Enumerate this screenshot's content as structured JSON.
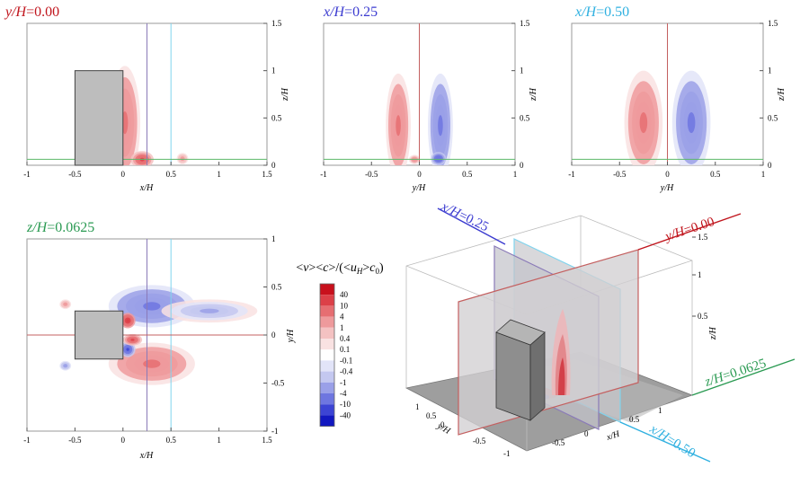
{
  "chart_data": [
    {
      "type": "heatmap",
      "panel": "top-left",
      "title": {
        "var": "y/H",
        "eq": "=0.00",
        "color": "#c0141c"
      },
      "xlabel": "x/H",
      "ylabel": "z/H",
      "xlim": [
        -1,
        1.5
      ],
      "ylim": [
        0,
        1.5
      ],
      "xticks": [
        "-1",
        "-0.5",
        "0",
        "0.5",
        "1",
        "1.5"
      ],
      "yticks": [
        "0",
        "0.5",
        "1",
        "1.5"
      ],
      "obstacle": {
        "x": [
          -0.5,
          0
        ],
        "z": [
          0,
          1
        ]
      },
      "lines": [
        {
          "orient": "vertical",
          "at": 0.25,
          "color": "#8a7ab8"
        },
        {
          "orient": "vertical",
          "at": 0.5,
          "color": "#7fd4ee"
        },
        {
          "orient": "horizontal",
          "at": 0.0625,
          "color": "#5bb86a"
        }
      ],
      "blobs": [
        {
          "x": 0.02,
          "y": 0.45,
          "rx": 0.16,
          "ry": 0.6,
          "v": 1.3
        },
        {
          "x": 0.2,
          "y": 0.06,
          "rx": 0.12,
          "ry": 0.09,
          "v": 2.6
        },
        {
          "x": 0.62,
          "y": 0.07,
          "rx": 0.06,
          "ry": 0.06,
          "v": 0.45
        }
      ]
    },
    {
      "type": "heatmap",
      "panel": "top-middle",
      "title": {
        "var": "x/H",
        "eq": "=0.25",
        "color": "#3b3bd0"
      },
      "xlabel": "y/H",
      "ylabel": "z/H",
      "xlim": [
        -1,
        1
      ],
      "ylim": [
        0,
        1.5
      ],
      "xticks": [
        "-1",
        "-0.5",
        "0",
        "0.5",
        "1"
      ],
      "yticks": [
        "0",
        "0.5",
        "1",
        "1.5"
      ],
      "lines": [
        {
          "orient": "vertical",
          "at": 0.0,
          "color": "#c46060"
        },
        {
          "orient": "horizontal",
          "at": 0.0625,
          "color": "#5bb86a"
        }
      ],
      "blobs": [
        {
          "x": -0.22,
          "y": 0.42,
          "rx": 0.13,
          "ry": 0.55,
          "v": 1.1
        },
        {
          "x": 0.22,
          "y": 0.42,
          "rx": 0.13,
          "ry": 0.55,
          "v": -1.1
        },
        {
          "x": 0.2,
          "y": 0.07,
          "rx": 0.08,
          "ry": 0.07,
          "v": -2.2
        },
        {
          "x": -0.05,
          "y": 0.06,
          "rx": 0.06,
          "ry": 0.05,
          "v": 0.8
        }
      ]
    },
    {
      "type": "heatmap",
      "panel": "top-right",
      "title": {
        "var": "x/H",
        "eq": "=0.50",
        "color": "#2fb0e0"
      },
      "xlabel": "y/H",
      "ylabel": "z/H",
      "xlim": [
        -1,
        1
      ],
      "ylim": [
        0,
        1.5
      ],
      "xticks": [
        "-1",
        "-0.5",
        "0",
        "0.5",
        "1"
      ],
      "yticks": [
        "0",
        "0.5",
        "1",
        "1.5"
      ],
      "lines": [
        {
          "orient": "vertical",
          "at": 0.0,
          "color": "#c46060"
        },
        {
          "orient": "horizontal",
          "at": 0.0625,
          "color": "#5bb86a"
        }
      ],
      "blobs": [
        {
          "x": -0.25,
          "y": 0.45,
          "rx": 0.2,
          "ry": 0.55,
          "v": 1.2
        },
        {
          "x": 0.25,
          "y": 0.45,
          "rx": 0.2,
          "ry": 0.55,
          "v": -1.2
        }
      ]
    },
    {
      "type": "heatmap",
      "panel": "bottom-left",
      "title": {
        "var": "z/H",
        "eq": "=0.0625",
        "color": "#2a9a52"
      },
      "xlabel": "x/H",
      "ylabel": "y/H",
      "xlim": [
        -1,
        1.5
      ],
      "ylim": [
        -1,
        1
      ],
      "xticks": [
        "-1",
        "-0.5",
        "0",
        "0.5",
        "1",
        "1.5"
      ],
      "yticks": [
        "-1",
        "-0.5",
        "0",
        "0.5",
        "1"
      ],
      "obstacle": {
        "x": [
          -0.5,
          0
        ],
        "y": [
          -0.25,
          0.25
        ]
      },
      "lines": [
        {
          "orient": "vertical",
          "at": 0.25,
          "color": "#8a7ab8"
        },
        {
          "orient": "vertical",
          "at": 0.5,
          "color": "#7fd4ee"
        },
        {
          "orient": "horizontal",
          "at": 0.0,
          "color": "#c46060"
        }
      ],
      "blobs": [
        {
          "x": 0.3,
          "y": 0.3,
          "rx": 0.45,
          "ry": 0.22,
          "v": -1.3
        },
        {
          "x": 0.3,
          "y": -0.3,
          "rx": 0.45,
          "ry": 0.22,
          "v": 1.3
        },
        {
          "x": 0.05,
          "y": 0.15,
          "rx": 0.08,
          "ry": 0.08,
          "v": 4.0
        },
        {
          "x": 0.05,
          "y": -0.15,
          "rx": 0.08,
          "ry": 0.08,
          "v": -3.0
        },
        {
          "x": 0.1,
          "y": -0.05,
          "rx": 0.1,
          "ry": 0.06,
          "v": 3.0
        },
        {
          "x": 0.9,
          "y": 0.25,
          "rx": 0.5,
          "ry": 0.12,
          "v": -0.3
        },
        {
          "x": -0.6,
          "y": 0.32,
          "rx": 0.06,
          "ry": 0.05,
          "v": 0.35
        },
        {
          "x": -0.6,
          "y": -0.32,
          "rx": 0.06,
          "ry": 0.05,
          "v": -0.35
        }
      ]
    },
    {
      "type": "heatmap",
      "panel": "3d-view",
      "xlabel": "x/H",
      "ylabel": "y/H",
      "zlabel": "z/H",
      "xticks": [
        "-0.5",
        "0",
        "0.5",
        "1"
      ],
      "yticks": [
        "-1",
        "-0.5",
        "0",
        "0.5",
        "1"
      ],
      "zticks": [
        "0.5",
        "1",
        "1.5"
      ],
      "plane_labels": [
        {
          "var": "x/H",
          "eq": "=0.25",
          "color": "#3b3bd0"
        },
        {
          "var": "y/H",
          "eq": "=0.00",
          "color": "#c0141c"
        },
        {
          "var": "z/H",
          "eq": "=0.0625",
          "color": "#2a9a52"
        },
        {
          "var": "x/H",
          "eq": "=0.50",
          "color": "#2fb0e0"
        }
      ]
    }
  ],
  "colorbar": {
    "title": "<v><c>/(<u_H>c_0)",
    "levels": [
      "40",
      "10",
      "4",
      "1",
      "0.4",
      "0.1",
      "-0.1",
      "-0.4",
      "-1",
      "-4",
      "-10",
      "-40"
    ],
    "colors": [
      "#c8101c",
      "#dc4048",
      "#e66e72",
      "#ee9a9c",
      "#f4c2c2",
      "#f9e2e2",
      "#ffffff",
      "#e2e4f8",
      "#c4c8f0",
      "#9aa0e8",
      "#6e76e0",
      "#3c44d4",
      "#1218c0"
    ]
  }
}
